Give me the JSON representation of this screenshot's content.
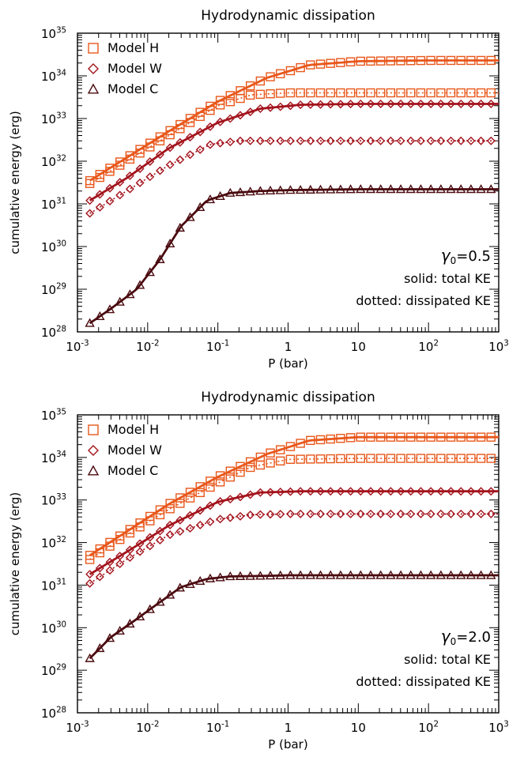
{
  "colors": {
    "H": "#e8571b",
    "W": "#a3131c",
    "C": "#4a0a0f"
  },
  "chart_data": [
    {
      "type": "line",
      "title": "Hydrodynamic dissipation",
      "xlabel": "P (bar)",
      "ylabel": "cumulative energy (erg)",
      "xscale": "log",
      "yscale": "log",
      "xlim": [
        0.001,
        1000
      ],
      "ylim": [
        1e+28,
        1e+35
      ],
      "x_tick_labels": [
        {
          "base": "10",
          "exp": "-3",
          "value": 0.001
        },
        {
          "base": "10",
          "exp": "-2",
          "value": 0.01
        },
        {
          "base": "10",
          "exp": "-1",
          "value": 0.1
        },
        {
          "base": "1",
          "exp": "",
          "value": 1
        },
        {
          "base": "10",
          "exp": "",
          "value": 10
        },
        {
          "base": "10",
          "exp": "2",
          "value": 100
        },
        {
          "base": "10",
          "exp": "3",
          "value": 1000
        }
      ],
      "y_tick_labels": [
        {
          "base": "10",
          "exp": "28",
          "value": 1e+28
        },
        {
          "base": "10",
          "exp": "29",
          "value": 1e+29
        },
        {
          "base": "10",
          "exp": "30",
          "value": 1e+30
        },
        {
          "base": "10",
          "exp": "31",
          "value": 1e+31
        },
        {
          "base": "10",
          "exp": "32",
          "value": 1e+32
        },
        {
          "base": "10",
          "exp": "33",
          "value": 1e+33
        },
        {
          "base": "10",
          "exp": "34",
          "value": 1e+34
        },
        {
          "base": "10",
          "exp": "35",
          "value": 1e+35
        }
      ],
      "legend": [
        {
          "label": "Model H",
          "marker": "square",
          "color_key": "H"
        },
        {
          "label": "Model W",
          "marker": "diamond",
          "color_key": "W"
        },
        {
          "label": "Model C",
          "marker": "triangle",
          "color_key": "C"
        }
      ],
      "annotation": {
        "gamma_symbol": "γ",
        "gamma_sub": "0",
        "gamma_value": "=0.5",
        "line2": "solid: total KE",
        "line3": "dotted: dissipated KE"
      },
      "series": [
        {
          "name": "Model H",
          "color_key": "H",
          "marker": "square",
          "style": "solid",
          "x": [
            0.0015,
            0.005,
            0.02,
            0.1,
            0.5,
            2,
            10,
            100,
            1000
          ],
          "y": [
            3.5e+31,
            1.2e+32,
            5e+32,
            2.5e+33,
            9e+33,
            1.8e+34,
            2.2e+34,
            2.3e+34,
            2.3e+34
          ]
        },
        {
          "name": "Model H",
          "color_key": "H",
          "marker": "square",
          "style": "dotted",
          "x": [
            0.0015,
            0.005,
            0.02,
            0.1,
            0.3,
            1,
            10,
            100,
            1000
          ],
          "y": [
            3e+31,
            1e+32,
            4e+32,
            2e+33,
            3.6e+33,
            4e+33,
            4e+33,
            4e+33,
            4e+33
          ]
        },
        {
          "name": "Model W",
          "color_key": "W",
          "marker": "diamond",
          "style": "solid",
          "x": [
            0.0015,
            0.005,
            0.02,
            0.1,
            0.4,
            1.5,
            10,
            100,
            1000
          ],
          "y": [
            1.2e+31,
            4e+31,
            2e+32,
            8e+32,
            1.7e+33,
            2.1e+33,
            2.2e+33,
            2.2e+33,
            2.2e+33
          ]
        },
        {
          "name": "Model W",
          "color_key": "W",
          "marker": "diamond",
          "style": "dotted",
          "x": [
            0.0015,
            0.005,
            0.02,
            0.08,
            0.2,
            1,
            10,
            100,
            1000
          ],
          "y": [
            6e+30,
            2e+31,
            8e+31,
            2.5e+32,
            3e+32,
            3e+32,
            3e+32,
            3e+32,
            3e+32
          ]
        },
        {
          "name": "Model C",
          "color_key": "C",
          "marker": "triangle",
          "style": "solid",
          "x": [
            0.0015,
            0.003,
            0.007,
            0.015,
            0.03,
            0.07,
            0.15,
            0.4,
            1,
            10,
            100,
            1000
          ],
          "y": [
            1.6e+28,
            3.5e+28,
            1e+29,
            5e+29,
            3e+30,
            1.2e+31,
            1.8e+31,
            2e+31,
            2.1e+31,
            2.2e+31,
            2.2e+31,
            2.2e+31
          ]
        }
      ]
    },
    {
      "type": "line",
      "title": "Hydrodynamic dissipation",
      "xlabel": "P (bar)",
      "ylabel": "cumulative energy (erg)",
      "xscale": "log",
      "yscale": "log",
      "xlim": [
        0.001,
        1000
      ],
      "ylim": [
        1e+28,
        1e+35
      ],
      "x_tick_labels": [
        {
          "base": "10",
          "exp": "-3",
          "value": 0.001
        },
        {
          "base": "10",
          "exp": "-2",
          "value": 0.01
        },
        {
          "base": "10",
          "exp": "-1",
          "value": 0.1
        },
        {
          "base": "1",
          "exp": "",
          "value": 1
        },
        {
          "base": "10",
          "exp": "",
          "value": 10
        },
        {
          "base": "10",
          "exp": "2",
          "value": 100
        },
        {
          "base": "10",
          "exp": "3",
          "value": 1000
        }
      ],
      "y_tick_labels": [
        {
          "base": "10",
          "exp": "28",
          "value": 1e+28
        },
        {
          "base": "10",
          "exp": "29",
          "value": 1e+29
        },
        {
          "base": "10",
          "exp": "30",
          "value": 1e+30
        },
        {
          "base": "10",
          "exp": "31",
          "value": 1e+31
        },
        {
          "base": "10",
          "exp": "32",
          "value": 1e+32
        },
        {
          "base": "10",
          "exp": "33",
          "value": 1e+33
        },
        {
          "base": "10",
          "exp": "34",
          "value": 1e+34
        },
        {
          "base": "10",
          "exp": "35",
          "value": 1e+35
        }
      ],
      "legend": [
        {
          "label": "Model H",
          "marker": "square",
          "color_key": "H"
        },
        {
          "label": "Model W",
          "marker": "diamond",
          "color_key": "W"
        },
        {
          "label": "Model C",
          "marker": "triangle",
          "color_key": "C"
        }
      ],
      "annotation": {
        "gamma_symbol": "γ",
        "gamma_sub": "0",
        "gamma_value": "=2.0",
        "line2": "solid: total KE",
        "line3": "dotted: dissipated KE"
      },
      "series": [
        {
          "name": "Model H",
          "color_key": "H",
          "marker": "square",
          "style": "solid",
          "x": [
            0.0015,
            0.005,
            0.02,
            0.1,
            0.5,
            2,
            10,
            100,
            1000
          ],
          "y": [
            5e+31,
            1.8e+32,
            8e+32,
            3.5e+33,
            1.2e+34,
            2.5e+34,
            3e+34,
            3e+34,
            3e+34
          ]
        },
        {
          "name": "Model H",
          "color_key": "H",
          "marker": "square",
          "style": "dotted",
          "x": [
            0.0015,
            0.005,
            0.02,
            0.1,
            0.3,
            1,
            10,
            100,
            1000
          ],
          "y": [
            4e+31,
            1.5e+32,
            6e+32,
            2.5e+33,
            6e+33,
            9e+33,
            9.5e+33,
            9.5e+33,
            9.5e+33
          ]
        },
        {
          "name": "Model W",
          "color_key": "W",
          "marker": "diamond",
          "style": "solid",
          "x": [
            0.0015,
            0.005,
            0.02,
            0.1,
            0.4,
            1.5,
            10,
            100,
            1000
          ],
          "y": [
            1.8e+31,
            6e+31,
            2.5e+32,
            9e+32,
            1.5e+33,
            1.6e+33,
            1.6e+33,
            1.6e+33,
            1.6e+33
          ]
        },
        {
          "name": "Model W",
          "color_key": "W",
          "marker": "diamond",
          "style": "dotted",
          "x": [
            0.0015,
            0.005,
            0.02,
            0.1,
            0.3,
            1,
            10,
            100,
            1000
          ],
          "y": [
            1.1e+31,
            4e+31,
            1.5e+32,
            3.5e+32,
            4.5e+32,
            4.7e+32,
            4.7e+32,
            4.7e+32,
            4.7e+32
          ]
        },
        {
          "name": "Model C",
          "color_key": "C",
          "marker": "triangle",
          "style": "solid",
          "x": [
            0.0015,
            0.003,
            0.007,
            0.015,
            0.03,
            0.07,
            0.15,
            0.5,
            1,
            10,
            100,
            1000
          ],
          "y": [
            1.9e+29,
            6e+29,
            1.6e+30,
            4e+30,
            9e+30,
            1.4e+31,
            1.6e+31,
            1.65e+31,
            1.7e+31,
            1.7e+31,
            1.7e+31,
            1.7e+31
          ]
        }
      ]
    }
  ]
}
